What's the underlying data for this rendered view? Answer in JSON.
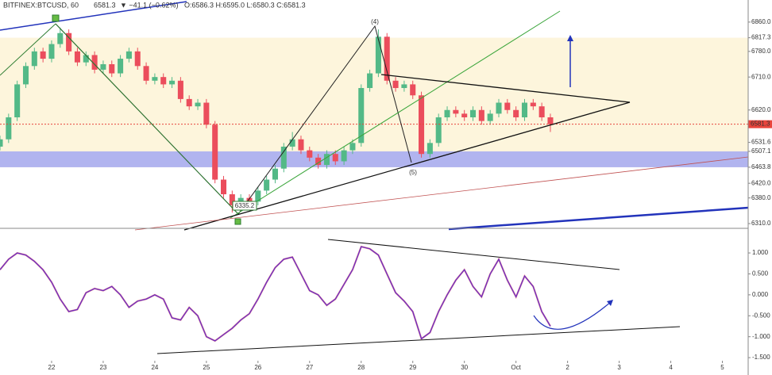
{
  "header": {
    "symbol": "BITFINEX:BTCUSD, 60",
    "price": "6581.3",
    "change": "▼ −41.1 (−0.62%)",
    "ohlc": "O:6586.3 H:6595.0 L:6580.3 C:6581.3"
  },
  "annotations": [
    "(4)",
    "(5)",
    "6335.2"
  ],
  "chart_data": [
    {
      "type": "candlestick",
      "up_color": "#53b987",
      "down_color": "#eb4d5c",
      "xlim": [
        0,
        87
      ],
      "xticks": [
        {
          "value": 6,
          "label": "22"
        },
        {
          "value": 12,
          "label": "23"
        },
        {
          "value": 18,
          "label": "24"
        },
        {
          "value": 24,
          "label": "25"
        },
        {
          "value": 30,
          "label": "26"
        },
        {
          "value": 36,
          "label": "27"
        },
        {
          "value": 42,
          "label": "28"
        },
        {
          "value": 48,
          "label": "29"
        },
        {
          "value": 54,
          "label": "30"
        },
        {
          "value": 60,
          "label": "Oct"
        },
        {
          "value": 66,
          "label": "2"
        },
        {
          "value": 72,
          "label": "3"
        },
        {
          "value": 78,
          "label": "4"
        },
        {
          "value": 84,
          "label": "5"
        }
      ],
      "ylim": [
        6297,
        6890
      ],
      "yticks": [
        {
          "value": 6860,
          "label": "6860.0"
        },
        6817.3,
        {
          "value": 6780,
          "label": "6780.0"
        },
        {
          "value": 6710,
          "label": "6710.0"
        },
        {
          "value": 6620,
          "label": "6620.0"
        },
        6531.6,
        6507.1,
        6463.8,
        {
          "value": 6420,
          "label": "6420.0"
        },
        {
          "value": 6380,
          "label": "6380.0"
        },
        {
          "value": 6310,
          "label": "6310.0"
        }
      ],
      "last_price": 6581.3,
      "last_color": "#e8453c",
      "zones": [
        {
          "from": 6463.8,
          "to": 6817.3,
          "color": "#fdf3d6"
        },
        {
          "from": 6463.8,
          "to": 6507.1,
          "color": "#a3a8f2"
        }
      ],
      "open": [
        6520,
        6540,
        6600,
        6690,
        6740,
        6780,
        6760,
        6800,
        6830,
        6780,
        6750,
        6770,
        6730,
        6745,
        6720,
        6760,
        6780,
        6740,
        6700,
        6710,
        6690,
        6700,
        6650,
        6630,
        6640,
        6580,
        6430,
        6390,
        6360,
        6380,
        6370,
        6400,
        6430,
        6460,
        6520,
        6540,
        6510,
        6490,
        6470,
        6500,
        6480,
        6510,
        6530,
        6680,
        6720,
        6820,
        6700,
        6680,
        6690,
        6660,
        6500,
        6530,
        6600,
        6620,
        6610,
        6600,
        6620,
        6590,
        6610,
        6640,
        6620,
        6600,
        6640,
        6630,
        6600
      ],
      "high": [
        6550,
        6610,
        6700,
        6750,
        6790,
        6790,
        6810,
        6845,
        6840,
        6790,
        6780,
        6780,
        6755,
        6755,
        6770,
        6790,
        6790,
        6750,
        6720,
        6720,
        6710,
        6710,
        6660,
        6650,
        6650,
        6590,
        6440,
        6400,
        6390,
        6390,
        6410,
        6440,
        6470,
        6530,
        6560,
        6550,
        6520,
        6500,
        6510,
        6510,
        6520,
        6540,
        6690,
        6730,
        6840,
        6830,
        6710,
        6700,
        6700,
        6670,
        6540,
        6610,
        6630,
        6630,
        6620,
        6630,
        6630,
        6620,
        6650,
        6650,
        6630,
        6650,
        6650,
        6640,
        6610
      ],
      "low": [
        6510,
        6530,
        6590,
        6680,
        6730,
        6750,
        6750,
        6790,
        6770,
        6740,
        6740,
        6720,
        6720,
        6710,
        6710,
        6750,
        6730,
        6690,
        6690,
        6680,
        6680,
        6640,
        6620,
        6620,
        6570,
        6420,
        6380,
        6340,
        6350,
        6360,
        6360,
        6390,
        6420,
        6450,
        6510,
        6500,
        6480,
        6460,
        6460,
        6470,
        6470,
        6500,
        6520,
        6670,
        6710,
        6690,
        6670,
        6670,
        6650,
        6490,
        6490,
        6520,
        6590,
        6600,
        6590,
        6590,
        6580,
        6580,
        6600,
        6610,
        6590,
        6590,
        6620,
        6590,
        6560
      ],
      "close": [
        6540,
        6600,
        6690,
        6740,
        6780,
        6760,
        6800,
        6830,
        6780,
        6750,
        6770,
        6730,
        6745,
        6720,
        6760,
        6780,
        6740,
        6700,
        6710,
        6690,
        6700,
        6650,
        6630,
        6640,
        6580,
        6430,
        6390,
        6360,
        6380,
        6370,
        6400,
        6430,
        6460,
        6520,
        6540,
        6510,
        6490,
        6470,
        6500,
        6480,
        6510,
        6530,
        6680,
        6720,
        6820,
        6700,
        6680,
        6690,
        6660,
        6500,
        6530,
        6600,
        6620,
        6610,
        6600,
        6620,
        6590,
        6610,
        6640,
        6620,
        6600,
        6640,
        6630,
        6600,
        6581.3
      ]
    },
    {
      "type": "line",
      "color": "#6a2bc4",
      "xlim": [
        0,
        87
      ],
      "ylim": [
        -1.82,
        1.55
      ],
      "yticks": [
        {
          "value": 1,
          "label": "1.000"
        },
        {
          "value": 0.5,
          "label": "0.500"
        },
        {
          "value": 0,
          "label": "0.000"
        },
        {
          "value": -0.5,
          "label": "-0.500"
        },
        {
          "value": -1,
          "label": "-1.000"
        },
        {
          "value": -1.5,
          "label": "-1.500"
        }
      ],
      "values": [
        0.6,
        0.85,
        1.0,
        0.95,
        0.8,
        0.6,
        0.3,
        -0.1,
        -0.4,
        -0.35,
        0.05,
        0.15,
        0.1,
        0.2,
        0.0,
        -0.3,
        -0.15,
        -0.1,
        0.0,
        -0.1,
        -0.55,
        -0.6,
        -0.3,
        -0.5,
        -1.0,
        -1.1,
        -0.95,
        -0.8,
        -0.6,
        -0.45,
        -0.1,
        0.3,
        0.65,
        0.85,
        0.9,
        0.5,
        0.1,
        0.0,
        -0.25,
        -0.1,
        0.25,
        0.6,
        1.15,
        1.1,
        0.95,
        0.5,
        0.05,
        -0.15,
        -0.4,
        -1.05,
        -0.9,
        -0.4,
        0.0,
        0.35,
        0.6,
        0.2,
        -0.05,
        0.5,
        0.85,
        0.35,
        -0.05,
        0.45,
        0.2,
        -0.4,
        -0.75
      ]
    }
  ]
}
